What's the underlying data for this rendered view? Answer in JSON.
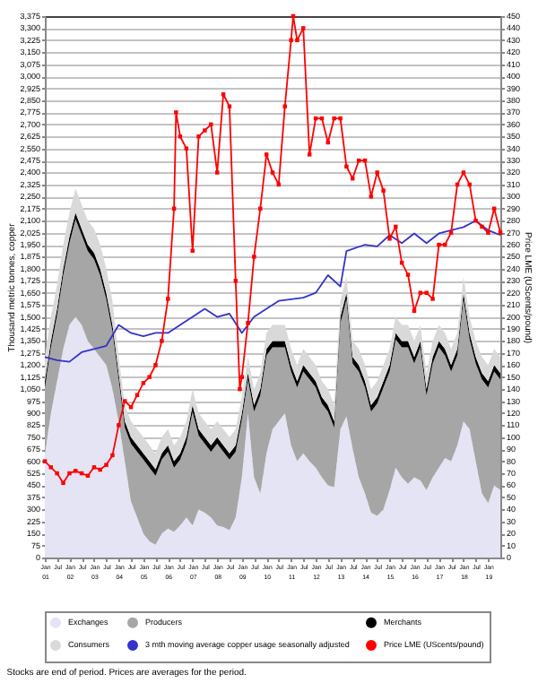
{
  "chart_data": {
    "type": "area",
    "stacked": true,
    "ylabel": "Thousand metric tonnes, copper",
    "y2label": "Price LME (UScents/pound)",
    "annotations": [
      "Stocks are end of period.  Prices are averages for the period."
    ],
    "grid": "y",
    "legend": "bottom",
    "line_style": "solid",
    "x": [
      "2001-01",
      "2001-04",
      "2001-07",
      "2001-10",
      "2002-01",
      "2002-04",
      "2002-07",
      "2002-10",
      "2003-01",
      "2003-04",
      "2003-07",
      "2003-10",
      "2004-01",
      "2004-04",
      "2004-07",
      "2004-10",
      "2005-01",
      "2005-04",
      "2005-07",
      "2005-10",
      "2006-01",
      "2006-04",
      "2006-07",
      "2006-10",
      "2007-01",
      "2007-04",
      "2007-07",
      "2007-10",
      "2008-01",
      "2008-04",
      "2008-07",
      "2008-10",
      "2009-01",
      "2009-04",
      "2009-07",
      "2009-10",
      "2010-01",
      "2010-04",
      "2010-07",
      "2010-10",
      "2011-01",
      "2011-04",
      "2011-07",
      "2011-10",
      "2012-01",
      "2012-04",
      "2012-07",
      "2012-10",
      "2013-01",
      "2013-04",
      "2013-07",
      "2013-10",
      "2014-01",
      "2014-04",
      "2014-07",
      "2014-10",
      "2015-01",
      "2015-04",
      "2015-07",
      "2015-10",
      "2016-01",
      "2016-04",
      "2016-07",
      "2016-10",
      "2017-01",
      "2017-04",
      "2017-07",
      "2017-10",
      "2018-01",
      "2018-04",
      "2018-07",
      "2018-10",
      "2019-01",
      "2019-04",
      "2019-07"
    ],
    "xlim": [
      "2001-01",
      "2019-07"
    ],
    "xticks": [
      {
        "value": "2001-01",
        "label": "Jan\n01"
      },
      {
        "value": "2001-07",
        "label": "Jul"
      },
      {
        "value": "2002-01",
        "label": "Jan\n02"
      },
      {
        "value": "2002-07",
        "label": "Jul"
      },
      {
        "value": "2003-01",
        "label": "Jan\n03"
      },
      {
        "value": "2003-07",
        "label": "Jul"
      },
      {
        "value": "2004-01",
        "label": "Jan\n04"
      },
      {
        "value": "2004-07",
        "label": "Jul"
      },
      {
        "value": "2005-01",
        "label": "Jan\n05"
      },
      {
        "value": "2005-07",
        "label": "Jul"
      },
      {
        "value": "2006-01",
        "label": "Jan\n06"
      },
      {
        "value": "2006-07",
        "label": "Jul"
      },
      {
        "value": "2007-01",
        "label": "Jan\n07"
      },
      {
        "value": "2007-07",
        "label": "Jul"
      },
      {
        "value": "2008-01",
        "label": "Jan\n08"
      },
      {
        "value": "2008-07",
        "label": "Jul"
      },
      {
        "value": "2009-01",
        "label": "Jan\n09"
      },
      {
        "value": "2009-07",
        "label": "Jul"
      },
      {
        "value": "2010-01",
        "label": "Jan\n10"
      },
      {
        "value": "2010-07",
        "label": "Jul"
      },
      {
        "value": "2011-01",
        "label": "Jan\n11"
      },
      {
        "value": "2011-07",
        "label": "Jul"
      },
      {
        "value": "2012-01",
        "label": "Jan\n12"
      },
      {
        "value": "2012-07",
        "label": "Jul"
      },
      {
        "value": "2013-01",
        "label": "Jan\n13"
      },
      {
        "value": "2013-07",
        "label": "Jul"
      },
      {
        "value": "2014-01",
        "label": "Jan\n14"
      },
      {
        "value": "2014-07",
        "label": "Jul"
      },
      {
        "value": "2015-01",
        "label": "Jan\n15"
      },
      {
        "value": "2015-07",
        "label": "Jul"
      },
      {
        "value": "2016-01",
        "label": "Jan\n16"
      },
      {
        "value": "2016-07",
        "label": "Jul"
      },
      {
        "value": "2017-01",
        "label": "Jan\n17"
      },
      {
        "value": "2017-07",
        "label": "Jul"
      },
      {
        "value": "2018-01",
        "label": "Jan\n18"
      },
      {
        "value": "2018-07",
        "label": "Jul"
      },
      {
        "value": "2019-01",
        "label": "Jan\n19"
      }
    ],
    "ylim": [
      0,
      3375
    ],
    "yticks": [
      0,
      75,
      150,
      225,
      300,
      375,
      450,
      525,
      600,
      675,
      750,
      825,
      900,
      975,
      {
        "value": 1050,
        "label": "1,050"
      },
      {
        "value": 1125,
        "label": "1,125"
      },
      {
        "value": 1200,
        "label": "1,200"
      },
      {
        "value": 1275,
        "label": "1,275"
      },
      {
        "value": 1350,
        "label": "1,350"
      },
      {
        "value": 1425,
        "label": "1,425"
      },
      {
        "value": 1500,
        "label": "1,500"
      },
      {
        "value": 1575,
        "label": "1,575"
      },
      {
        "value": 1650,
        "label": "1,650"
      },
      {
        "value": 1725,
        "label": "1,725"
      },
      {
        "value": 1800,
        "label": "1,800"
      },
      {
        "value": 1875,
        "label": "1,875"
      },
      {
        "value": 1950,
        "label": "1,950"
      },
      {
        "value": 2025,
        "label": "2,025"
      },
      {
        "value": 2100,
        "label": "2,100"
      },
      {
        "value": 2175,
        "label": "2,175"
      },
      {
        "value": 2250,
        "label": "2,250"
      },
      {
        "value": 2325,
        "label": "2,325"
      },
      {
        "value": 2400,
        "label": "2,400"
      },
      {
        "value": 2475,
        "label": "2,475"
      },
      {
        "value": 2550,
        "label": "2,550"
      },
      {
        "value": 2625,
        "label": "2,625"
      },
      {
        "value": 2700,
        "label": "2,700"
      },
      {
        "value": 2775,
        "label": "2,775"
      },
      {
        "value": 2850,
        "label": "2,850"
      },
      {
        "value": 2925,
        "label": "2,925"
      },
      {
        "value": 3000,
        "label": "3,000"
      },
      {
        "value": 3075,
        "label": "3,075"
      },
      {
        "value": 3150,
        "label": "3,150"
      },
      {
        "value": 3225,
        "label": "3,225"
      },
      {
        "value": 3300,
        "label": "3,300"
      },
      {
        "value": 3375,
        "label": "3,375"
      }
    ],
    "y2lim": [
      0,
      450
    ],
    "y2ticks": [
      0,
      10,
      20,
      30,
      40,
      50,
      60,
      70,
      80,
      90,
      100,
      110,
      120,
      130,
      140,
      150,
      160,
      170,
      180,
      190,
      200,
      210,
      220,
      230,
      240,
      250,
      260,
      270,
      280,
      290,
      300,
      310,
      320,
      330,
      340,
      350,
      360,
      370,
      380,
      390,
      400,
      410,
      420,
      430,
      440,
      450
    ],
    "series": [
      {
        "name": "Exchanges",
        "color": "#e4e4f4",
        "values": [
          650,
          900,
          1100,
          1300,
          1450,
          1500,
          1450,
          1350,
          1300,
          1250,
          1200,
          1050,
          850,
          600,
          350,
          250,
          150,
          100,
          80,
          150,
          180,
          160,
          200,
          250,
          200,
          300,
          280,
          250,
          200,
          190,
          170,
          250,
          500,
          900,
          500,
          400,
          650,
          800,
          850,
          900,
          700,
          600,
          650,
          600,
          560,
          500,
          450,
          440,
          800,
          880,
          680,
          500,
          400,
          280,
          260,
          300,
          420,
          560,
          500,
          460,
          500,
          480,
          420,
          500,
          560,
          620,
          600,
          700,
          850,
          800,
          600,
          400,
          340,
          450,
          420
        ]
      },
      {
        "name": "Producers",
        "color": "#a6a6a6",
        "values": [
          410,
          410,
          410,
          460,
          510,
          610,
          560,
          560,
          560,
          510,
          410,
          360,
          260,
          210,
          360,
          410,
          460,
          460,
          430,
          460,
          480,
          400,
          410,
          460,
          710,
          460,
          430,
          410,
          510,
          470,
          440,
          410,
          360,
          210,
          410,
          610,
          610,
          510,
          460,
          410,
          460,
          460,
          510,
          510,
          500,
          460,
          460,
          370,
          660,
          730,
          530,
          660,
          660,
          630,
          700,
          760,
          740,
          800,
          810,
          850,
          710,
          830,
          590,
          710,
          750,
          640,
          560,
          560,
          760,
          560,
          610,
          710,
          720,
          710,
          690
        ]
      },
      {
        "name": "Merchants",
        "color": "#000000",
        "values": [
          40,
          40,
          40,
          40,
          40,
          40,
          40,
          40,
          40,
          40,
          40,
          40,
          40,
          40,
          40,
          40,
          40,
          40,
          40,
          40,
          40,
          40,
          40,
          40,
          40,
          40,
          40,
          40,
          40,
          40,
          40,
          40,
          40,
          40,
          40,
          40,
          40,
          40,
          40,
          40,
          40,
          40,
          40,
          40,
          40,
          40,
          40,
          40,
          40,
          40,
          40,
          40,
          40,
          40,
          40,
          40,
          40,
          40,
          40,
          40,
          40,
          40,
          40,
          40,
          40,
          40,
          40,
          40,
          40,
          40,
          40,
          40,
          40,
          40,
          40
        ]
      },
      {
        "name": "Consumers",
        "color": "#d9d9d9",
        "values": [
          150,
          150,
          150,
          150,
          150,
          150,
          150,
          150,
          150,
          150,
          150,
          150,
          100,
          100,
          100,
          100,
          100,
          100,
          100,
          100,
          100,
          100,
          100,
          100,
          100,
          100,
          100,
          100,
          100,
          100,
          100,
          100,
          100,
          100,
          100,
          100,
          100,
          100,
          100,
          100,
          100,
          100,
          100,
          100,
          100,
          100,
          100,
          100,
          100,
          100,
          100,
          100,
          100,
          100,
          100,
          100,
          100,
          100,
          100,
          100,
          100,
          100,
          100,
          100,
          100,
          100,
          100,
          100,
          100,
          100,
          100,
          100,
          100,
          100,
          100
        ]
      },
      {
        "name": "3 mth moving average copper usage seasonally adjusted",
        "type": "line",
        "color": "#3333cc",
        "marker": "none",
        "x": [
          "2001-01",
          "2001-07",
          "2002-01",
          "2002-07",
          "2003-01",
          "2003-07",
          "2004-01",
          "2004-07",
          "2005-01",
          "2005-07",
          "2006-01",
          "2006-07",
          "2007-01",
          "2007-07",
          "2008-01",
          "2008-07",
          "2009-01",
          "2009-07",
          "2010-01",
          "2010-07",
          "2011-01",
          "2011-07",
          "2012-01",
          "2012-07",
          "2013-01",
          "2013-04",
          "2014-01",
          "2014-07",
          "2015-01",
          "2015-07",
          "2016-01",
          "2016-07",
          "2017-01",
          "2017-07",
          "2018-01",
          "2018-07",
          "2019-01",
          "2019-07"
        ],
        "values": [
          1250,
          1230,
          1220,
          1280,
          1300,
          1320,
          1450,
          1400,
          1380,
          1400,
          1400,
          1450,
          1500,
          1550,
          1500,
          1520,
          1400,
          1500,
          1550,
          1600,
          1610,
          1620,
          1650,
          1760,
          1690,
          1910,
          1950,
          1940,
          2010,
          1960,
          2020,
          1960,
          2020,
          2040,
          2060,
          2100,
          2040,
          2010
        ]
      },
      {
        "name": "Price LME (UScents/pound)",
        "type": "line",
        "axis": "y2",
        "color": "#ff0000",
        "marker": "square",
        "x": [
          "2001-01",
          "2001-04",
          "2001-07",
          "2001-10",
          "2002-01",
          "2002-04",
          "2002-07",
          "2002-10",
          "2003-01",
          "2003-04",
          "2003-07",
          "2003-10",
          "2004-01",
          "2004-04",
          "2004-07",
          "2004-10",
          "2005-01",
          "2005-04",
          "2005-07",
          "2005-10",
          "2006-01",
          "2006-04",
          "2006-05",
          "2006-07",
          "2006-10",
          "2007-01",
          "2007-04",
          "2007-07",
          "2007-10",
          "2008-01",
          "2008-04",
          "2008-07",
          "2008-10",
          "2008-12",
          "2009-01",
          "2009-04",
          "2009-07",
          "2009-10",
          "2010-01",
          "2010-04",
          "2010-07",
          "2010-10",
          "2011-01",
          "2011-02",
          "2011-04",
          "2011-07",
          "2011-10",
          "2012-01",
          "2012-04",
          "2012-07",
          "2012-10",
          "2013-01",
          "2013-04",
          "2013-07",
          "2013-10",
          "2014-01",
          "2014-04",
          "2014-07",
          "2014-10",
          "2015-01",
          "2015-04",
          "2015-07",
          "2015-10",
          "2016-01",
          "2016-04",
          "2016-07",
          "2016-10",
          "2017-01",
          "2017-04",
          "2017-07",
          "2017-10",
          "2018-01",
          "2018-04",
          "2018-07",
          "2018-10",
          "2019-01",
          "2019-04",
          "2019-07"
        ],
        "values": [
          80,
          75,
          70,
          62,
          70,
          72,
          70,
          68,
          75,
          73,
          77,
          85,
          110,
          130,
          125,
          135,
          145,
          150,
          160,
          180,
          215,
          290,
          370,
          350,
          340,
          255,
          350,
          355,
          360,
          320,
          385,
          375,
          230,
          140,
          150,
          195,
          250,
          290,
          335,
          320,
          310,
          375,
          430,
          450,
          430,
          440,
          335,
          365,
          365,
          345,
          365,
          365,
          325,
          315,
          330,
          330,
          300,
          320,
          305,
          265,
          275,
          245,
          235,
          205,
          220,
          220,
          215,
          260,
          260,
          270,
          310,
          320,
          310,
          280,
          275,
          270,
          290,
          270
        ]
      }
    ]
  }
}
